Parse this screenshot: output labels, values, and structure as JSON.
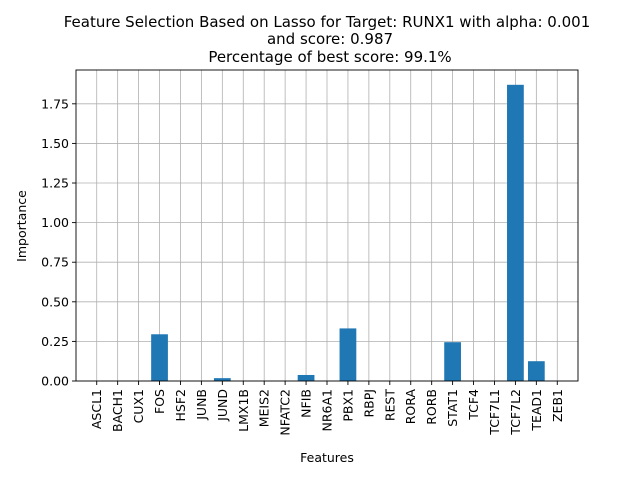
{
  "chart_data": {
    "type": "bar",
    "title_lines": [
      "Feature Selection Based on Lasso for Target: RUNX1 with alpha: 0.001",
      "and score: 0.987",
      "Percentage of best score: 99.1%"
    ],
    "xlabel": "Features",
    "ylabel": "Importance",
    "categories": [
      "ASCL1",
      "BACH1",
      "CUX1",
      "FOS",
      "HSF2",
      "JUNB",
      "JUND",
      "LMX1B",
      "MEIS2",
      "NFATC2",
      "NFIB",
      "NR6A1",
      "PBX1",
      "RBPJ",
      "REST",
      "RORA",
      "RORB",
      "STAT1",
      "TCF4",
      "TCF7L1",
      "TCF7L2",
      "TEAD1",
      "ZEB1"
    ],
    "values": [
      0,
      0,
      0,
      0.295,
      0,
      0,
      0.018,
      0,
      0,
      0,
      0.038,
      0,
      0.332,
      0,
      0,
      0,
      0,
      0.245,
      0,
      0,
      1.87,
      0.125,
      0
    ],
    "ylim": [
      0,
      1.9635
    ],
    "yticks": [
      0.0,
      0.25,
      0.5,
      0.75,
      1.0,
      1.25,
      1.5,
      1.75
    ],
    "ytick_labels": [
      "0.00",
      "0.25",
      "0.50",
      "0.75",
      "1.00",
      "1.25",
      "1.50",
      "1.75"
    ],
    "grid": true,
    "bar_color": "#1f77b4"
  }
}
